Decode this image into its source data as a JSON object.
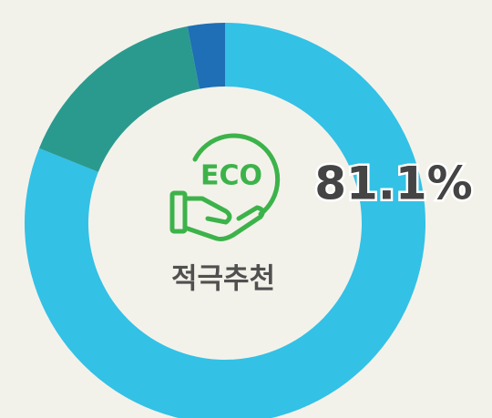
{
  "chart_data": {
    "type": "pie",
    "donut": true,
    "values": [
      81.1,
      15.9,
      3.0
    ],
    "value_labels": [
      "81.1%",
      null,
      null
    ],
    "colors": [
      "#33c1e6",
      "#2a9a8f",
      "#1e6fb5"
    ],
    "center_label": "적극추천",
    "icon_text": "ECO"
  }
}
